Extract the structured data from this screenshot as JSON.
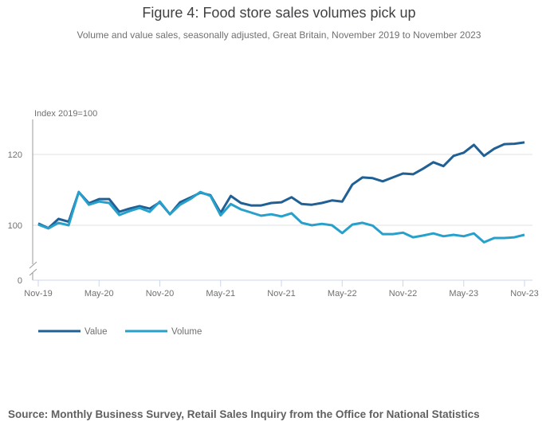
{
  "header": {
    "title": "Figure 4: Food store sales volumes pick up",
    "subtitle": "Volume and value sales, seasonally adjusted, Great Britain, November 2019 to November 2023"
  },
  "footer": {
    "source": "Source: Monthly Business Survey, Retail Sales Inquiry from the Office for National Statistics"
  },
  "chart_data": {
    "type": "line",
    "title": "Figure 4: Food store sales volumes pick up",
    "subtitle": "Volume and value sales, seasonally adjusted, Great Britain, November 2019 to November 2023",
    "ylabel": "Index 2019=100",
    "xlabel": "",
    "ylim": [
      0,
      125
    ],
    "y_axis_break": true,
    "yticks": [
      0,
      100,
      120
    ],
    "grid": true,
    "legend_position": "bottom-left",
    "x": [
      "Nov-19",
      "Dec-19",
      "Jan-20",
      "Feb-20",
      "Mar-20",
      "Apr-20",
      "May-20",
      "Jun-20",
      "Jul-20",
      "Aug-20",
      "Sep-20",
      "Oct-20",
      "Nov-20",
      "Dec-20",
      "Jan-21",
      "Feb-21",
      "Mar-21",
      "Apr-21",
      "May-21",
      "Jun-21",
      "Jul-21",
      "Aug-21",
      "Sep-21",
      "Oct-21",
      "Nov-21",
      "Dec-21",
      "Jan-22",
      "Feb-22",
      "Mar-22",
      "Apr-22",
      "May-22",
      "Jun-22",
      "Jul-22",
      "Aug-22",
      "Sep-22",
      "Oct-22",
      "Nov-22",
      "Dec-22",
      "Jan-23",
      "Feb-23",
      "Mar-23",
      "Apr-23",
      "May-23",
      "Jun-23",
      "Jul-23",
      "Aug-23",
      "Sep-23",
      "Oct-23",
      "Nov-23"
    ],
    "xtick_labels": [
      "Nov-19",
      "May-20",
      "Nov-20",
      "May-21",
      "Nov-21",
      "May-22",
      "Nov-22",
      "May-23",
      "Nov-23"
    ],
    "series": [
      {
        "name": "Value",
        "color": "#206095",
        "values": [
          100.5,
          99.2,
          101.8,
          101.0,
          109.4,
          106.2,
          107.4,
          107.4,
          103.8,
          104.7,
          105.4,
          104.7,
          106.5,
          103.1,
          106.5,
          107.8,
          109.2,
          108.5,
          103.5,
          108.3,
          106.3,
          105.6,
          105.6,
          106.3,
          106.5,
          107.9,
          106.0,
          105.8,
          106.3,
          107.0,
          106.7,
          111.5,
          113.5,
          113.3,
          112.4,
          113.5,
          114.6,
          114.4,
          116.0,
          117.8,
          116.7,
          119.6,
          120.5,
          122.7,
          119.6,
          121.6,
          122.9,
          123.0,
          123.4
        ]
      },
      {
        "name": "Volume",
        "color": "#27a0cc",
        "values": [
          100.2,
          99.1,
          100.7,
          100.0,
          109.4,
          105.8,
          106.7,
          106.3,
          102.9,
          104.0,
          104.9,
          103.8,
          106.7,
          103.1,
          105.8,
          107.4,
          109.4,
          108.3,
          102.8,
          106.0,
          104.5,
          103.6,
          102.7,
          103.1,
          102.5,
          103.4,
          100.7,
          100.0,
          100.4,
          100.0,
          97.8,
          100.2,
          100.7,
          99.9,
          97.5,
          97.5,
          97.9,
          96.6,
          97.1,
          97.7,
          96.9,
          97.3,
          96.9,
          97.7,
          95.2,
          96.4,
          96.4,
          96.6,
          97.3
        ]
      }
    ]
  }
}
